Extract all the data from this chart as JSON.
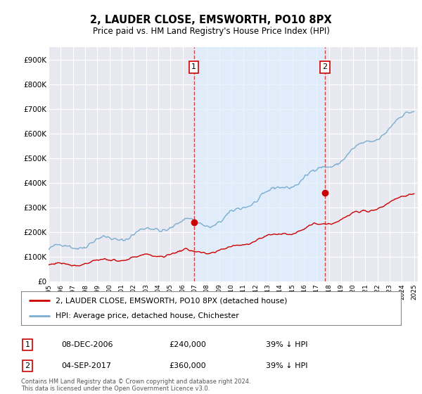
{
  "title": "2, LAUDER CLOSE, EMSWORTH, PO10 8PX",
  "subtitle": "Price paid vs. HM Land Registry's House Price Index (HPI)",
  "legend_label_red": "2, LAUDER CLOSE, EMSWORTH, PO10 8PX (detached house)",
  "legend_label_blue": "HPI: Average price, detached house, Chichester",
  "annotation1_date": "08-DEC-2006",
  "annotation1_price": "£240,000",
  "annotation1_hpi": "39% ↓ HPI",
  "annotation2_date": "04-SEP-2017",
  "annotation2_price": "£360,000",
  "annotation2_hpi": "39% ↓ HPI",
  "footer": "Contains HM Land Registry data © Crown copyright and database right 2024.\nThis data is licensed under the Open Government Licence v3.0.",
  "red_color": "#cc0000",
  "blue_color": "#7aadcf",
  "shade_color": "#ddeeff",
  "annotation_line_color": "#cc3333",
  "background_color": "#ffffff",
  "plot_bg_color": "#e8e8f0",
  "grid_color": "#ffffff",
  "ylim": [
    0,
    950000
  ],
  "yticks": [
    0,
    100000,
    200000,
    300000,
    400000,
    500000,
    600000,
    700000,
    800000,
    900000
  ],
  "ytick_labels": [
    "£0",
    "£100K",
    "£200K",
    "£300K",
    "£400K",
    "£500K",
    "£600K",
    "£700K",
    "£800K",
    "£900K"
  ],
  "sale1_x": 2006.92,
  "sale1_y": 240000,
  "sale2_x": 2017.67,
  "sale2_y": 360000,
  "xlim_left": 1995.0,
  "xlim_right": 2025.3
}
